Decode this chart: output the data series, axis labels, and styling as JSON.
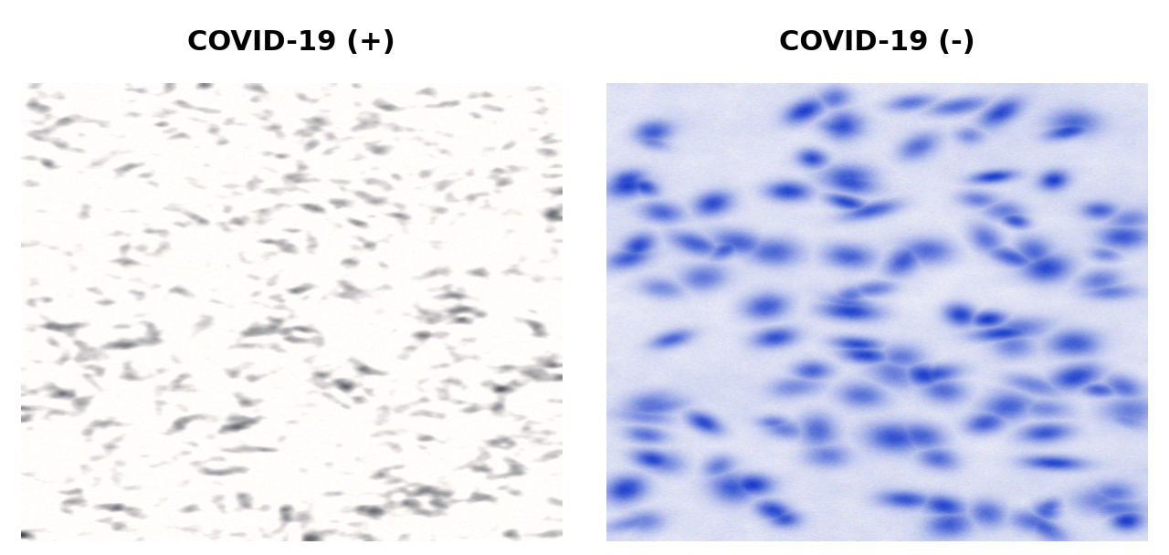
{
  "title_left": "COVID-19 (+)",
  "title_right": "COVID-19 (-)",
  "title_fontsize": 22,
  "title_fontweight": "bold",
  "background_color": "#ffffff",
  "fig_width": 12.8,
  "fig_height": 6.08
}
